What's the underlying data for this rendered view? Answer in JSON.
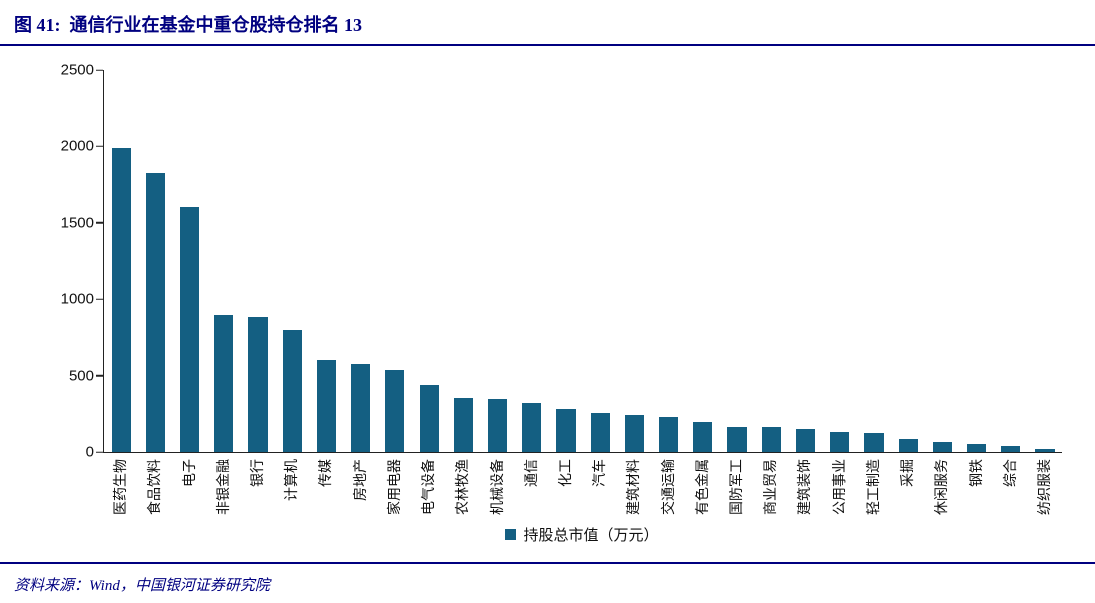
{
  "header": {
    "title": "图 41:  通信行业在基金中重仓股持仓排名 13"
  },
  "chart_data": {
    "type": "bar",
    "title": "通信行业在基金中重仓股持仓排名 13",
    "legend": "持股总市值（万元）",
    "legend_position": "bottom-center",
    "grid": false,
    "bar_color": "#145F82",
    "xlabel": "",
    "ylabel": "",
    "ylim": [
      0,
      2500
    ],
    "yticks": [
      0,
      500,
      1000,
      1500,
      2000,
      2500
    ],
    "categories": [
      "医药生物",
      "食品饮料",
      "电子",
      "非银金融",
      "银行",
      "计算机",
      "传媒",
      "房地产",
      "家用电器",
      "电气设备",
      "农林牧渔",
      "机械设备",
      "通信",
      "化工",
      "汽车",
      "建筑材料",
      "交通运输",
      "有色金属",
      "国防军工",
      "商业贸易",
      "建筑装饰",
      "公用事业",
      "轻工制造",
      "采掘",
      "休闲服务",
      "钢铁",
      "综合",
      "纺织服装"
    ],
    "values": [
      1990,
      1825,
      1605,
      895,
      885,
      800,
      600,
      575,
      535,
      440,
      355,
      350,
      320,
      280,
      255,
      240,
      230,
      195,
      165,
      163,
      150,
      130,
      125,
      85,
      65,
      50,
      40,
      20
    ]
  },
  "footer": {
    "source": "资料来源：Wind，中国银河证券研究院"
  },
  "colors": {
    "accent_navy": "#000080",
    "bar": "#145F82",
    "axis": "#222222"
  }
}
